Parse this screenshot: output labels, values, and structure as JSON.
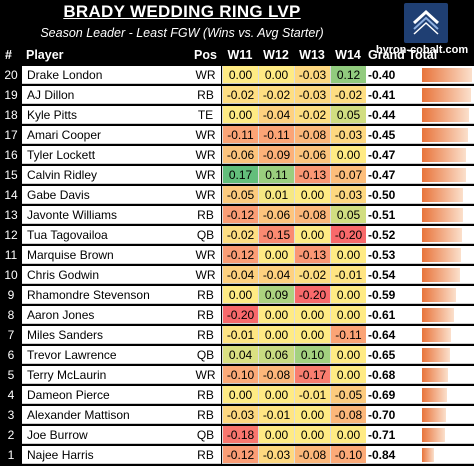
{
  "header": {
    "title": "BRADY WEDDING RING LVP",
    "subtitle": "Season Leader - Least FGW (Wins vs. Avg Starter)",
    "site": "byron-cobalt.com",
    "logo_icon": "chevron-logo-icon"
  },
  "columns": {
    "rank": "#",
    "player": "Player",
    "pos": "Pos",
    "w11": "W11",
    "w12": "W12",
    "w13": "W13",
    "w14": "W14",
    "total": "Grand Total"
  },
  "colors": {
    "green": "#63be7b",
    "yellow": "#ffeb84",
    "red": "#f8696b",
    "bar": "#e8743b"
  },
  "rows": [
    {
      "rank": "20",
      "player": "Drake London",
      "pos": "WR",
      "w11": "0.00",
      "w12": "0.00",
      "w13": "-0.03",
      "w14": "0.12",
      "total": "-0.40"
    },
    {
      "rank": "19",
      "player": "AJ Dillon",
      "pos": "RB",
      "w11": "-0.02",
      "w12": "-0.02",
      "w13": "-0.03",
      "w14": "-0.02",
      "total": "-0.41"
    },
    {
      "rank": "18",
      "player": "Kyle Pitts",
      "pos": "TE",
      "w11": "0.00",
      "w12": "-0.04",
      "w13": "-0.02",
      "w14": "0.05",
      "total": "-0.44"
    },
    {
      "rank": "17",
      "player": "Amari Cooper",
      "pos": "WR",
      "w11": "-0.11",
      "w12": "-0.11",
      "w13": "-0.08",
      "w14": "-0.03",
      "total": "-0.45"
    },
    {
      "rank": "16",
      "player": "Tyler Lockett",
      "pos": "WR",
      "w11": "-0.06",
      "w12": "-0.09",
      "w13": "-0.06",
      "w14": "0.00",
      "total": "-0.47"
    },
    {
      "rank": "15",
      "player": "Calvin Ridley",
      "pos": "WR",
      "w11": "0.17",
      "w12": "0.11",
      "w13": "-0.13",
      "w14": "-0.07",
      "total": "-0.47"
    },
    {
      "rank": "14",
      "player": "Gabe Davis",
      "pos": "WR",
      "w11": "-0.05",
      "w12": "0.01",
      "w13": "0.00",
      "w14": "-0.03",
      "total": "-0.50"
    },
    {
      "rank": "13",
      "player": "Javonte Williams",
      "pos": "RB",
      "w11": "-0.12",
      "w12": "-0.06",
      "w13": "-0.08",
      "w14": "0.05",
      "total": "-0.51"
    },
    {
      "rank": "12",
      "player": "Tua Tagovailoa",
      "pos": "QB",
      "w11": "-0.02",
      "w12": "-0.15",
      "w13": "0.00",
      "w14": "-0.20",
      "total": "-0.52"
    },
    {
      "rank": "11",
      "player": "Marquise Brown",
      "pos": "WR",
      "w11": "-0.12",
      "w12": "0.00",
      "w13": "-0.13",
      "w14": "0.00",
      "total": "-0.53"
    },
    {
      "rank": "10",
      "player": "Chris Godwin",
      "pos": "WR",
      "w11": "-0.04",
      "w12": "-0.04",
      "w13": "-0.02",
      "w14": "-0.01",
      "total": "-0.54"
    },
    {
      "rank": "9",
      "player": "Rhamondre Stevenson",
      "pos": "RB",
      "w11": "0.00",
      "w12": "0.09",
      "w13": "-0.20",
      "w14": "0.00",
      "total": "-0.59"
    },
    {
      "rank": "8",
      "player": "Aaron Jones",
      "pos": "RB",
      "w11": "-0.20",
      "w12": "0.00",
      "w13": "0.00",
      "w14": "0.00",
      "total": "-0.61"
    },
    {
      "rank": "7",
      "player": "Miles Sanders",
      "pos": "RB",
      "w11": "-0.01",
      "w12": "0.00",
      "w13": "0.00",
      "w14": "-0.11",
      "total": "-0.64"
    },
    {
      "rank": "6",
      "player": "Trevor Lawrence",
      "pos": "QB",
      "w11": "0.04",
      "w12": "0.06",
      "w13": "0.10",
      "w14": "0.00",
      "total": "-0.65"
    },
    {
      "rank": "5",
      "player": "Terry McLaurin",
      "pos": "WR",
      "w11": "-0.10",
      "w12": "-0.08",
      "w13": "-0.17",
      "w14": "0.00",
      "total": "-0.68"
    },
    {
      "rank": "4",
      "player": "Dameon Pierce",
      "pos": "RB",
      "w11": "0.00",
      "w12": "0.00",
      "w13": "-0.01",
      "w14": "-0.05",
      "total": "-0.69"
    },
    {
      "rank": "3",
      "player": "Alexander Mattison",
      "pos": "RB",
      "w11": "-0.03",
      "w12": "-0.01",
      "w13": "0.00",
      "w14": "-0.08",
      "total": "-0.70"
    },
    {
      "rank": "2",
      "player": "Joe Burrow",
      "pos": "QB",
      "w11": "-0.18",
      "w12": "0.00",
      "w13": "0.00",
      "w14": "0.00",
      "total": "-0.71"
    },
    {
      "rank": "1",
      "player": "Najee Harris",
      "pos": "RB",
      "w11": "-0.12",
      "w12": "-0.03",
      "w13": "-0.08",
      "w14": "-0.10",
      "total": "-0.84"
    }
  ]
}
